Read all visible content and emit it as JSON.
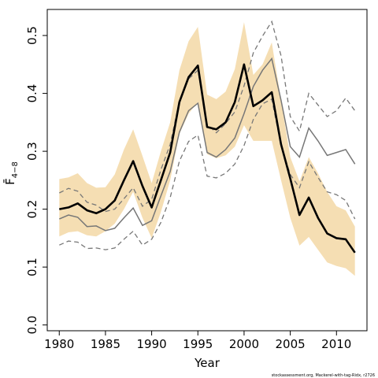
{
  "chart_data": {
    "type": "line",
    "xlabel": "Year",
    "ylabel": "F̄",
    "ylabel_subscript": "4−8",
    "xlim": [
      1978.7,
      2013.3
    ],
    "ylim": [
      -0.01,
      0.545
    ],
    "x_ticks": [
      1980,
      1985,
      1990,
      1995,
      2000,
      2005,
      2010
    ],
    "y_ticks": [
      0.0,
      0.1,
      0.2,
      0.3,
      0.4,
      0.5
    ],
    "y_tick_labels": [
      "0.0",
      "0.1",
      "0.2",
      "0.3",
      "0.4",
      "0.5"
    ],
    "footnote": "stockassessment.org, Mackerel-with-tag-Ridx, r2726",
    "colors": {
      "band": "#f5deb3",
      "main": "#000000",
      "alt": "#777777",
      "alt_ci": "#777777"
    },
    "x": [
      1980,
      1981,
      1982,
      1983,
      1984,
      1985,
      1986,
      1987,
      1988,
      1989,
      1990,
      1991,
      1992,
      1993,
      1994,
      1995,
      1996,
      1997,
      1998,
      1999,
      2000,
      2001,
      2002,
      2003,
      2004,
      2005,
      2006,
      2007,
      2008,
      2009,
      2010,
      2011,
      2012
    ],
    "series": [
      {
        "role": "band",
        "lower": [
          0.153,
          0.16,
          0.162,
          0.155,
          0.153,
          0.162,
          0.175,
          0.2,
          0.23,
          0.185,
          0.15,
          0.195,
          0.25,
          0.33,
          0.365,
          0.385,
          0.295,
          0.288,
          0.293,
          0.308,
          0.345,
          0.318,
          0.318,
          0.318,
          0.25,
          0.185,
          0.137,
          0.152,
          0.13,
          0.108,
          0.102,
          0.098,
          0.085
        ],
        "upper": [
          0.252,
          0.255,
          0.262,
          0.245,
          0.237,
          0.238,
          0.26,
          0.303,
          0.338,
          0.292,
          0.245,
          0.3,
          0.35,
          0.44,
          0.49,
          0.515,
          0.398,
          0.39,
          0.403,
          0.442,
          0.523,
          0.432,
          0.45,
          0.488,
          0.388,
          0.29,
          0.248,
          0.29,
          0.262,
          0.23,
          0.205,
          0.198,
          0.17
        ]
      },
      {
        "role": "main",
        "values": [
          0.2,
          0.203,
          0.21,
          0.198,
          0.193,
          0.2,
          0.215,
          0.25,
          0.283,
          0.24,
          0.203,
          0.25,
          0.298,
          0.385,
          0.428,
          0.448,
          0.342,
          0.338,
          0.35,
          0.385,
          0.45,
          0.378,
          0.388,
          0.402,
          0.312,
          0.253,
          0.19,
          0.22,
          0.185,
          0.158,
          0.15,
          0.148,
          0.125
        ]
      },
      {
        "role": "alt",
        "values": [
          0.183,
          0.19,
          0.186,
          0.17,
          0.171,
          0.163,
          0.167,
          0.185,
          0.202,
          0.172,
          0.18,
          0.223,
          0.265,
          0.333,
          0.37,
          0.383,
          0.298,
          0.29,
          0.303,
          0.323,
          0.365,
          0.412,
          0.44,
          0.46,
          0.388,
          0.308,
          0.29,
          0.34,
          0.318,
          0.293,
          0.298,
          0.303,
          0.278
        ]
      },
      {
        "role": "alt_ci_upper",
        "values": [
          0.228,
          0.236,
          0.231,
          0.212,
          0.207,
          0.196,
          0.2,
          0.218,
          0.237,
          0.205,
          0.217,
          0.268,
          0.312,
          0.387,
          0.425,
          0.44,
          0.347,
          0.332,
          0.348,
          0.368,
          0.413,
          0.47,
          0.499,
          0.524,
          0.465,
          0.36,
          0.335,
          0.4,
          0.38,
          0.36,
          0.37,
          0.392,
          0.37
        ]
      },
      {
        "role": "alt_ci_lower",
        "values": [
          0.138,
          0.145,
          0.143,
          0.132,
          0.133,
          0.13,
          0.133,
          0.148,
          0.162,
          0.138,
          0.148,
          0.177,
          0.22,
          0.283,
          0.317,
          0.328,
          0.257,
          0.254,
          0.262,
          0.278,
          0.31,
          0.355,
          0.382,
          0.39,
          0.31,
          0.26,
          0.237,
          0.282,
          0.255,
          0.23,
          0.225,
          0.215,
          0.183
        ]
      }
    ]
  }
}
